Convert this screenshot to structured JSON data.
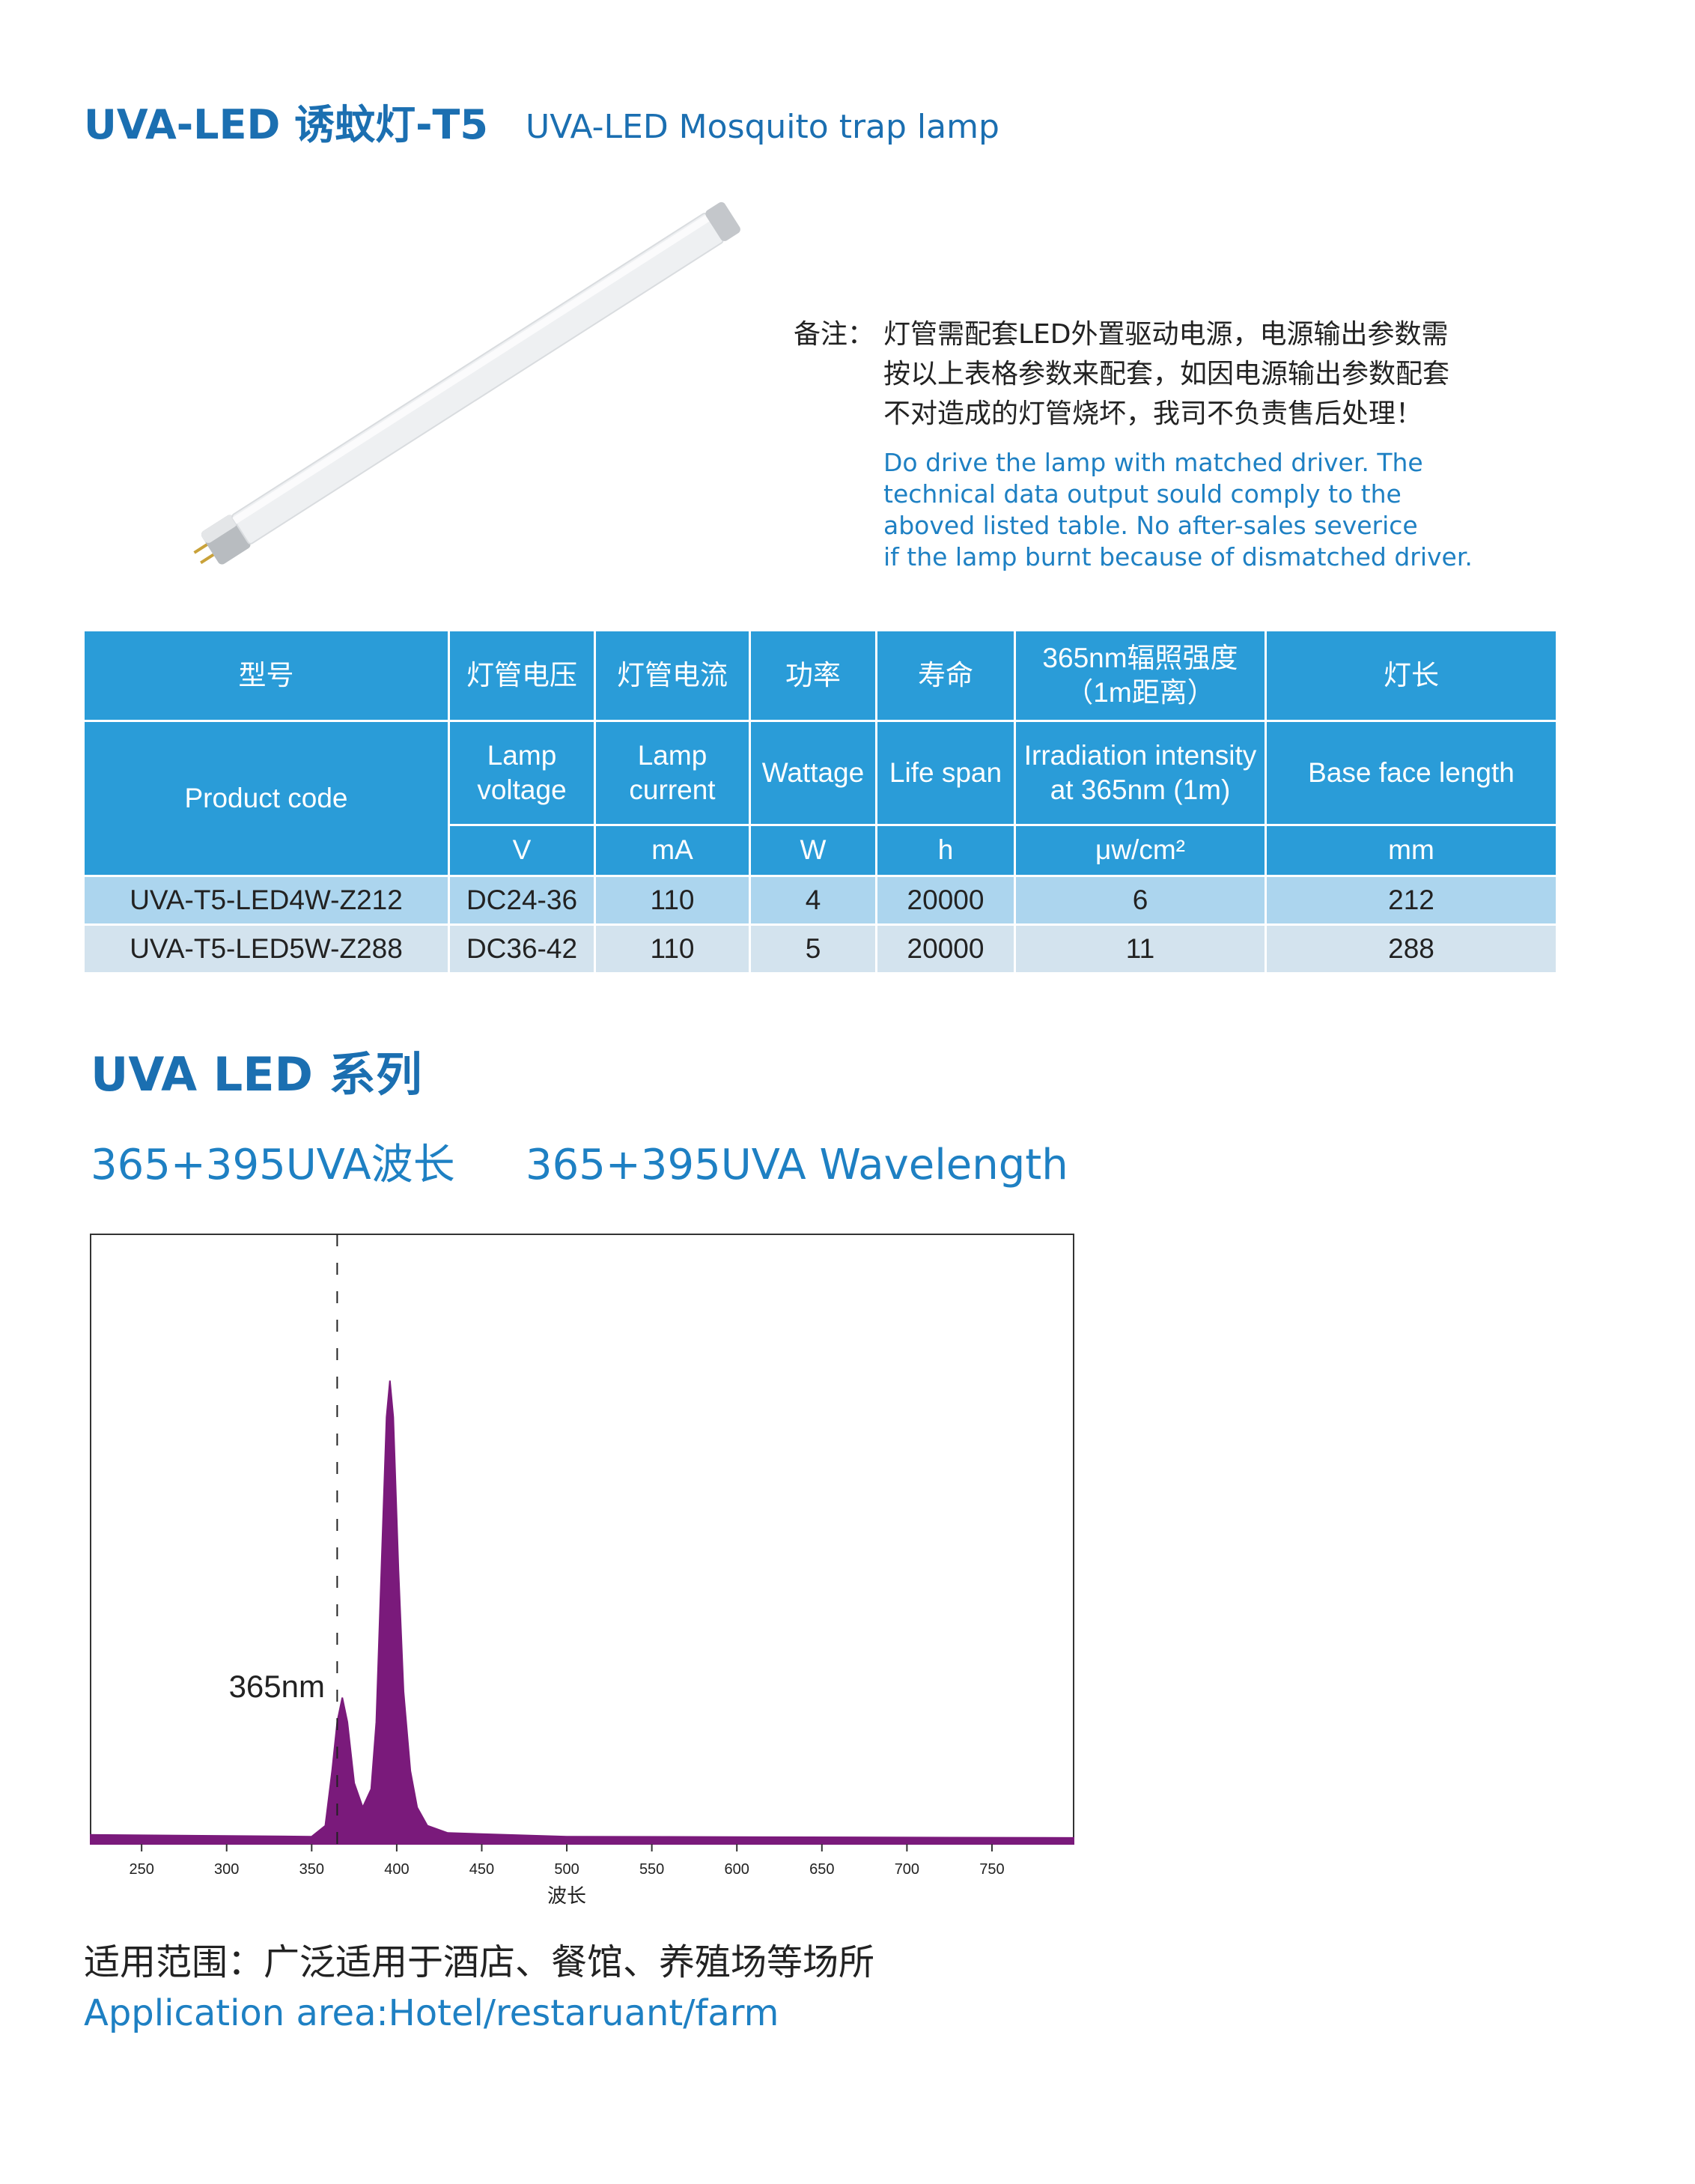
{
  "header": {
    "title": "UVA-LED 诱蚊灯-T5",
    "subtitle": "UVA-LED Mosquito trap lamp"
  },
  "note": {
    "label": "备注：",
    "cn_lines": [
      "灯管需配套LED外置驱动电源，电源输出参数需",
      "按以上表格参数来配套，如因电源输出参数配套",
      "不对造成的灯管烧坏，我司不负责售后处理！"
    ],
    "en_lines": [
      "Do drive the lamp with matched driver. The",
      "technical data output sould comply to the",
      "aboved listed table. No after-sales severice",
      "if the lamp burnt because of  dismatched driver."
    ]
  },
  "table": {
    "header_cn": [
      "型号",
      "灯管电压",
      "灯管电流",
      "功率",
      "寿命",
      [
        "365nm辐照强度",
        "（1m距离）"
      ],
      "灯长"
    ],
    "header_en": [
      "Product  code",
      "Lamp voltage",
      "Lamp current",
      "Wattage",
      "Life span",
      "Irradiation intensity at 365nm (1m)",
      "Base face length"
    ],
    "units": [
      "V",
      "mA",
      "W",
      "h",
      "μw/cm²",
      "mm"
    ],
    "rows": [
      [
        "UVA-T5-LED4W-Z212",
        "DC24-36",
        110,
        4,
        20000,
        6,
        212
      ],
      [
        "UVA-T5-LED5W-Z288",
        "DC36-42",
        110,
        5,
        20000,
        11,
        288
      ]
    ]
  },
  "section": {
    "title": "UVA LED 系列",
    "subtitle_cn": "365+395UVA波长",
    "subtitle_en": "365+395UVA Wavelength"
  },
  "chart_data": {
    "type": "area",
    "x_label": "波长",
    "color": "#7a1a7b",
    "x": [
      220,
      350,
      358,
      362,
      365,
      368,
      371,
      375,
      380,
      385,
      388,
      391,
      394,
      396,
      398,
      401,
      404,
      408,
      412,
      418,
      430,
      500,
      798
    ],
    "values": [
      0.015,
      0.012,
      0.03,
      0.12,
      0.2,
      0.24,
      0.2,
      0.1,
      0.06,
      0.09,
      0.2,
      0.45,
      0.7,
      0.76,
      0.7,
      0.45,
      0.25,
      0.12,
      0.06,
      0.03,
      0.018,
      0.012,
      0.01
    ],
    "xlim": [
      220,
      798
    ],
    "ylim": [
      0,
      1
    ],
    "xticks": [
      250,
      300,
      350,
      400,
      450,
      500,
      550,
      600,
      650,
      700,
      750
    ],
    "reference_line": 365,
    "annotation": "365nm"
  },
  "footer": {
    "cn": "适用范围：广泛适用于酒店、餐馆、养殖场等场所",
    "en": "Application area:Hotel/restaruant/farm"
  }
}
